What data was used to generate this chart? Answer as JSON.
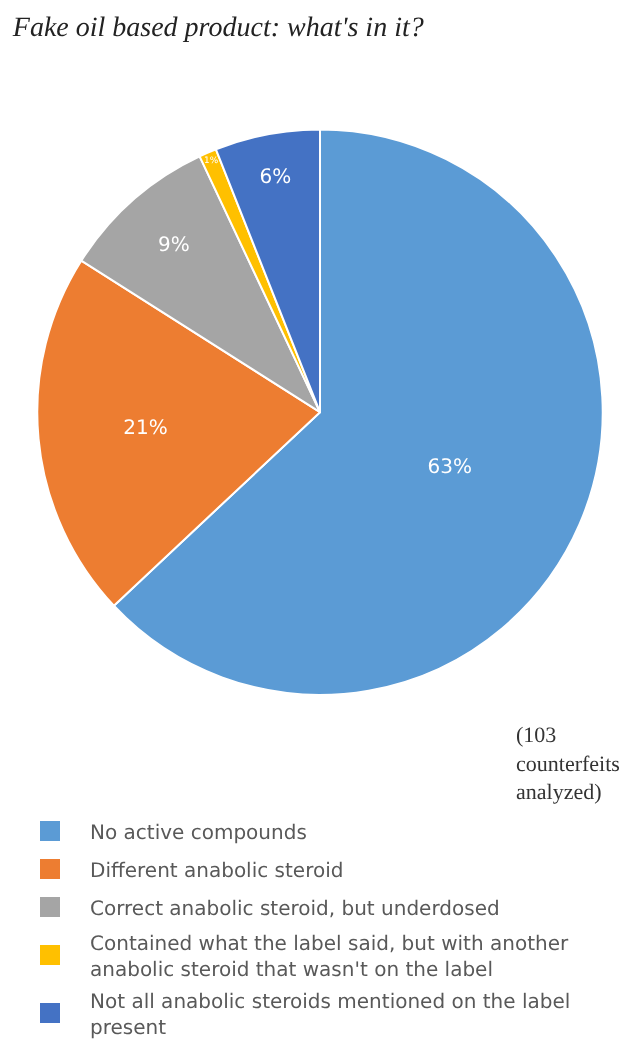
{
  "chart_data": {
    "type": "pie",
    "title": "Fake oil based product: what's in it?",
    "categories": [
      "No active compounds",
      "Different anabolic steroid",
      "Correct anabolic steroid, but underdosed",
      "Contained what the label said, but with another anabolic steroid that wasn't on the label",
      "Not all anabolic steroids mentioned on the label present"
    ],
    "values": [
      63,
      21,
      9,
      1,
      6
    ],
    "value_labels": [
      "63%",
      "21%",
      "9%",
      "1%",
      "6%"
    ],
    "colors": [
      "#5b9bd5",
      "#ed7d31",
      "#a5a5a5",
      "#ffc000",
      "#4472c4"
    ],
    "annotations": [
      "(103 counterfeits analyzed)"
    ],
    "legend": "bottom"
  }
}
